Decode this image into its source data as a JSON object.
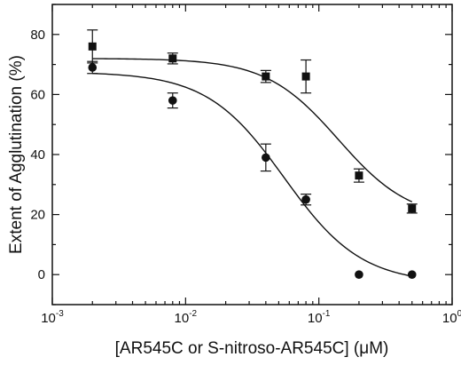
{
  "chart_data": {
    "type": "scatter",
    "title": "",
    "xlabel": "[AR545C or S-nitroso-AR545C] (μM)",
    "ylabel": "Extent of Agglutination (%)",
    "x_scale": "log",
    "xlim": [
      0.001,
      1
    ],
    "ylim": [
      -10,
      90
    ],
    "x_ticks": [
      {
        "value": 0.001,
        "base": "10",
        "exp": "-3"
      },
      {
        "value": 0.01,
        "base": "10",
        "exp": "-2"
      },
      {
        "value": 0.1,
        "base": "10",
        "exp": "-1"
      },
      {
        "value": 1,
        "base": "10",
        "exp": "0"
      }
    ],
    "y_ticks": [
      "0",
      "20",
      "40",
      "60",
      "80"
    ],
    "y_tick_values": [
      0,
      20,
      40,
      60,
      80
    ],
    "grid": false,
    "legend": "none",
    "series": [
      {
        "marker": "square",
        "color": "#111111",
        "points": [
          {
            "x": 0.002,
            "y": 76,
            "err": 5.5
          },
          {
            "x": 0.008,
            "y": 72,
            "err": 1.8
          },
          {
            "x": 0.04,
            "y": 66,
            "err": 2.0
          },
          {
            "x": 0.08,
            "y": 66,
            "err": 5.5
          },
          {
            "x": 0.2,
            "y": 33,
            "err": 2.2
          },
          {
            "x": 0.5,
            "y": 22,
            "err": 1.5
          }
        ],
        "fit": {
          "top": 72,
          "bottom": 18,
          "ic50": 0.14,
          "hill": 1.6
        }
      },
      {
        "marker": "circle",
        "color": "#111111",
        "points": [
          {
            "x": 0.002,
            "y": 69,
            "err": 2.0
          },
          {
            "x": 0.008,
            "y": 58,
            "err": 2.5
          },
          {
            "x": 0.04,
            "y": 39,
            "err": 4.5
          },
          {
            "x": 0.08,
            "y": 25,
            "err": 1.8
          },
          {
            "x": 0.2,
            "y": 0,
            "err": 0
          },
          {
            "x": 0.5,
            "y": 0,
            "err": 0
          }
        ],
        "fit": {
          "top": 67.5,
          "bottom": -3,
          "ic50": 0.055,
          "hill": 1.5
        }
      }
    ]
  }
}
